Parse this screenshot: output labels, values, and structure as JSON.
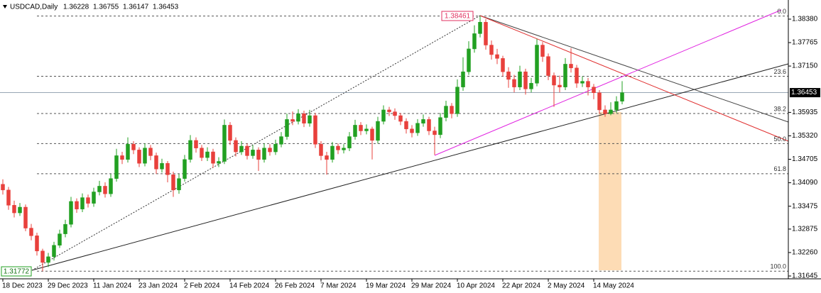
{
  "chart_data": {
    "type": "candlestick",
    "title": "USDCAD,Daily",
    "bull_color": "#22a022",
    "bear_color": "#e8403c",
    "grid": false,
    "ylim": [
      1.31571,
      1.38882
    ],
    "yticks": [
      {
        "value": 1.3838,
        "label": "1.38380"
      },
      1.37765,
      {
        "value": 1.3715,
        "label": "1.37150"
      },
      1.35935,
      {
        "value": 1.3532,
        "label": "1.35320"
      },
      1.34705,
      {
        "value": 1.3409,
        "label": "1.34090"
      },
      1.33475,
      1.32875,
      {
        "value": 1.3226,
        "label": "1.32260"
      },
      1.31645
    ],
    "fib": {
      "high": 1.38461,
      "low": 1.31772,
      "levels": [
        {
          "value": 0,
          "label": "0.0"
        },
        23.6,
        38.2,
        {
          "value": 50,
          "label": "50.0"
        },
        61.8,
        {
          "value": 100,
          "label": "100.0"
        }
      ]
    },
    "categories": [
      "18 Dec 2023",
      null,
      null,
      null,
      null,
      null,
      null,
      null,
      "29 Dec 2023",
      null,
      null,
      null,
      null,
      null,
      null,
      null,
      "11 Jan 2024",
      null,
      null,
      null,
      null,
      null,
      null,
      null,
      "23 Jan 2024",
      null,
      null,
      null,
      null,
      null,
      null,
      null,
      "2 Feb 2024",
      null,
      null,
      null,
      null,
      null,
      null,
      null,
      "14 Feb 2024",
      null,
      null,
      null,
      null,
      null,
      null,
      null,
      "26 Feb 2024",
      null,
      null,
      null,
      null,
      null,
      null,
      null,
      "7 Mar 2024",
      null,
      null,
      null,
      null,
      null,
      null,
      null,
      "19 Mar 2024",
      null,
      null,
      null,
      null,
      null,
      null,
      null,
      "29 Mar 2024",
      null,
      null,
      null,
      null,
      null,
      null,
      null,
      "10 Apr 2024",
      null,
      null,
      null,
      null,
      null,
      null,
      null,
      "22 Apr 2024",
      null,
      null,
      null,
      null,
      null,
      null,
      null,
      "2 May 2024",
      null,
      null,
      null,
      null,
      null,
      null,
      null,
      "14 May 2024",
      null,
      null,
      null,
      null,
      null
    ],
    "candles": [
      [
        1.3405,
        1.3418,
        1.3378,
        1.339
      ],
      [
        1.339,
        1.3398,
        1.3338,
        1.335
      ],
      [
        1.335,
        1.3362,
        1.3318,
        1.333
      ],
      [
        1.333,
        1.3356,
        1.3322,
        1.3345
      ],
      [
        1.3345,
        1.3352,
        1.3282,
        1.329
      ],
      [
        1.329,
        1.3301,
        1.3258,
        1.327
      ],
      [
        1.327,
        1.3278,
        1.3218,
        1.323
      ],
      [
        1.323,
        1.3236,
        1.31772,
        1.32
      ],
      [
        1.32,
        1.3225,
        1.3188,
        1.3215
      ],
      [
        1.3215,
        1.3254,
        1.3205,
        1.3245
      ],
      [
        1.3245,
        1.3286,
        1.3238,
        1.3275
      ],
      [
        1.3275,
        1.3312,
        1.3266,
        1.33
      ],
      [
        1.33,
        1.3372,
        1.3292,
        1.336
      ],
      [
        1.336,
        1.3368,
        1.333,
        1.334
      ],
      [
        1.334,
        1.3381,
        1.3332,
        1.337
      ],
      [
        1.337,
        1.3378,
        1.3344,
        1.3355
      ],
      [
        1.3355,
        1.3396,
        1.3346,
        1.3385
      ],
      [
        1.3385,
        1.3414,
        1.3376,
        1.34
      ],
      [
        1.34,
        1.341,
        1.337,
        1.338
      ],
      [
        1.338,
        1.3432,
        1.3372,
        1.342
      ],
      [
        1.342,
        1.3498,
        1.3412,
        1.348
      ],
      [
        1.348,
        1.349,
        1.3458,
        1.347
      ],
      [
        1.347,
        1.3528,
        1.3462,
        1.351
      ],
      [
        1.351,
        1.3518,
        1.3484,
        1.3495
      ],
      [
        1.3495,
        1.3502,
        1.345,
        1.346
      ],
      [
        1.346,
        1.3512,
        1.3452,
        1.35
      ],
      [
        1.35,
        1.3508,
        1.3468,
        1.348
      ],
      [
        1.348,
        1.3488,
        1.3432,
        1.3445
      ],
      [
        1.3445,
        1.3472,
        1.3436,
        1.346
      ],
      [
        1.346,
        1.3466,
        1.341,
        1.343
      ],
      [
        1.343,
        1.3438,
        1.3372,
        1.339
      ],
      [
        1.339,
        1.3432,
        1.338,
        1.342
      ],
      [
        1.342,
        1.3482,
        1.3412,
        1.347
      ],
      [
        1.347,
        1.3534,
        1.3462,
        1.352
      ],
      [
        1.352,
        1.3528,
        1.3488,
        1.35
      ],
      [
        1.35,
        1.3508,
        1.3466,
        1.3475
      ],
      [
        1.3475,
        1.3502,
        1.3466,
        1.349
      ],
      [
        1.349,
        1.3498,
        1.3448,
        1.346
      ],
      [
        1.346,
        1.3476,
        1.345,
        1.3465
      ],
      [
        1.3465,
        1.3575,
        1.3458,
        1.356
      ],
      [
        1.356,
        1.3568,
        1.3508,
        1.352
      ],
      [
        1.352,
        1.3528,
        1.3478,
        1.349
      ],
      [
        1.349,
        1.3518,
        1.3482,
        1.3505
      ],
      [
        1.3505,
        1.3512,
        1.347,
        1.348
      ],
      [
        1.348,
        1.3508,
        1.3472,
        1.3495
      ],
      [
        1.3495,
        1.3502,
        1.344,
        1.347
      ],
      [
        1.347,
        1.3512,
        1.3462,
        1.35
      ],
      [
        1.35,
        1.351,
        1.348,
        1.349
      ],
      [
        1.349,
        1.3522,
        1.3482,
        1.351
      ],
      [
        1.351,
        1.3542,
        1.3502,
        1.353
      ],
      [
        1.353,
        1.359,
        1.3522,
        1.3575
      ],
      [
        1.3575,
        1.3596,
        1.356,
        1.357
      ],
      [
        1.357,
        1.3602,
        1.3562,
        1.359
      ],
      [
        1.359,
        1.3598,
        1.3555,
        1.3565
      ],
      [
        1.3565,
        1.36,
        1.3556,
        1.3585
      ],
      [
        1.3585,
        1.3592,
        1.35,
        1.351
      ],
      [
        1.351,
        1.3518,
        1.3468,
        1.348
      ],
      [
        1.348,
        1.349,
        1.343,
        1.347
      ],
      [
        1.347,
        1.3516,
        1.3462,
        1.3505
      ],
      [
        1.3505,
        1.3512,
        1.3484,
        1.3495
      ],
      [
        1.3495,
        1.351,
        1.3486,
        1.35
      ],
      [
        1.35,
        1.3542,
        1.3492,
        1.353
      ],
      [
        1.353,
        1.3574,
        1.3522,
        1.356
      ],
      [
        1.356,
        1.3568,
        1.3534,
        1.3545
      ],
      [
        1.3545,
        1.3562,
        1.3536,
        1.355
      ],
      [
        1.355,
        1.3556,
        1.347,
        1.352
      ],
      [
        1.352,
        1.3582,
        1.3512,
        1.357
      ],
      [
        1.357,
        1.3612,
        1.3562,
        1.36
      ],
      [
        1.36,
        1.3608,
        1.3584,
        1.3595
      ],
      [
        1.3595,
        1.3604,
        1.3574,
        1.3585
      ],
      [
        1.3585,
        1.3592,
        1.356,
        1.357
      ],
      [
        1.357,
        1.3578,
        1.3538,
        1.355
      ],
      [
        1.355,
        1.356,
        1.3528,
        1.354
      ],
      [
        1.354,
        1.3576,
        1.3532,
        1.3565
      ],
      [
        1.3565,
        1.3588,
        1.3556,
        1.3575
      ],
      [
        1.3575,
        1.3582,
        1.3534,
        1.3545
      ],
      [
        1.3545,
        1.3556,
        1.3482,
        1.3535
      ],
      [
        1.3535,
        1.3592,
        1.3526,
        1.358
      ],
      [
        1.358,
        1.3624,
        1.357,
        1.361
      ],
      [
        1.361,
        1.3618,
        1.3578,
        1.359
      ],
      [
        1.359,
        1.368,
        1.3582,
        1.366
      ],
      [
        1.366,
        1.3738,
        1.365,
        1.37
      ],
      [
        1.37,
        1.378,
        1.3692,
        1.376
      ],
      [
        1.376,
        1.3822,
        1.375,
        1.38
      ],
      [
        1.38,
        1.38461,
        1.379,
        1.383
      ],
      [
        1.383,
        1.3838,
        1.3758,
        1.377
      ],
      [
        1.377,
        1.3782,
        1.3732,
        1.3745
      ],
      [
        1.3745,
        1.376,
        1.372,
        1.3735
      ],
      [
        1.3735,
        1.3742,
        1.3688,
        1.37
      ],
      [
        1.37,
        1.3712,
        1.3658,
        1.368
      ],
      [
        1.368,
        1.3692,
        1.3646,
        1.366
      ],
      [
        1.366,
        1.3716,
        1.3652,
        1.37
      ],
      [
        1.37,
        1.3708,
        1.364,
        1.3655
      ],
      [
        1.3655,
        1.3684,
        1.3646,
        1.367
      ],
      [
        1.367,
        1.3786,
        1.3662,
        1.377
      ],
      [
        1.377,
        1.3778,
        1.3726,
        1.374
      ],
      [
        1.374,
        1.3748,
        1.3678,
        1.369
      ],
      [
        1.369,
        1.3698,
        1.3608,
        1.3665
      ],
      [
        1.3665,
        1.369,
        1.3646,
        1.366
      ],
      [
        1.366,
        1.3736,
        1.3652,
        1.372
      ],
      [
        1.372,
        1.3762,
        1.3698,
        1.371
      ],
      [
        1.371,
        1.3718,
        1.3658,
        1.367
      ],
      [
        1.367,
        1.3688,
        1.366,
        1.3675
      ],
      [
        1.3675,
        1.3684,
        1.3638,
        1.366
      ],
      [
        1.366,
        1.3668,
        1.3628,
        1.3645
      ],
      [
        1.3645,
        1.3652,
        1.359,
        1.36
      ],
      [
        1.36,
        1.3612,
        1.3582,
        1.359
      ],
      [
        1.359,
        1.362,
        1.3586,
        1.36
      ],
      [
        1.36,
        1.3636,
        1.3592,
        1.3622
      ],
      [
        1.36228,
        1.36755,
        1.36147,
        1.36453
      ]
    ]
  }
}
